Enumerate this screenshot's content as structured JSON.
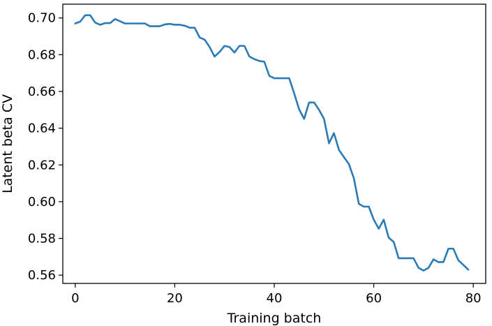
{
  "chart_data": {
    "type": "line",
    "title": "",
    "xlabel": "Training batch",
    "ylabel": "Latent beta CV",
    "xlim": [
      -2.5,
      82.5
    ],
    "ylim": [
      0.5555,
      0.7075
    ],
    "xticks": [
      0,
      20,
      40,
      60,
      80
    ],
    "xtick_labels": [
      "0",
      "20",
      "40",
      "60",
      "80"
    ],
    "yticks": [
      0.56,
      0.58,
      0.6,
      0.62,
      0.64,
      0.66,
      0.68,
      0.7
    ],
    "ytick_labels": [
      "0.56",
      "0.58",
      "0.60",
      "0.62",
      "0.64",
      "0.66",
      "0.68",
      "0.70"
    ],
    "grid": false,
    "line_color": "#2a7ab8",
    "series": [
      {
        "x": [
          0,
          1,
          2,
          3,
          4,
          5,
          6,
          7,
          8,
          9,
          10,
          11,
          12,
          13,
          14,
          15,
          16,
          17,
          18,
          19,
          20,
          21,
          22,
          23,
          24,
          25,
          26,
          27,
          28,
          29,
          30,
          31,
          32,
          33,
          34,
          35,
          36,
          37,
          38,
          39,
          40,
          41,
          42,
          43,
          44,
          45,
          46,
          47,
          48,
          49,
          50,
          51,
          52,
          53,
          54,
          55,
          56,
          57,
          58,
          59,
          60,
          61,
          62,
          63,
          64,
          65,
          66,
          67,
          68,
          69,
          70,
          71,
          72,
          73,
          74,
          75,
          76,
          77,
          78,
          79
        ],
        "values": [
          0.697,
          0.698,
          0.7015,
          0.7015,
          0.6975,
          0.6963,
          0.6972,
          0.6972,
          0.6994,
          0.6982,
          0.697,
          0.697,
          0.697,
          0.697,
          0.697,
          0.6955,
          0.6955,
          0.6955,
          0.6965,
          0.6968,
          0.6963,
          0.6963,
          0.6958,
          0.6947,
          0.6947,
          0.6894,
          0.6882,
          0.6842,
          0.679,
          0.6815,
          0.6848,
          0.6842,
          0.6812,
          0.6848,
          0.6848,
          0.679,
          0.6776,
          0.6766,
          0.6762,
          0.6685,
          0.6672,
          0.6672,
          0.6672,
          0.6672,
          0.659,
          0.6502,
          0.6451,
          0.654,
          0.654,
          0.65,
          0.6451,
          0.6318,
          0.6373,
          0.6282,
          0.6243,
          0.6205,
          0.6127,
          0.5988,
          0.5973,
          0.5973,
          0.5902,
          0.5853,
          0.5902,
          0.5804,
          0.5781,
          0.5692,
          0.5692,
          0.5692,
          0.5692,
          0.564,
          0.5625,
          0.564,
          0.5686,
          0.5671,
          0.5671,
          0.5744,
          0.5744,
          0.5681,
          0.5656,
          0.563
        ]
      }
    ]
  }
}
